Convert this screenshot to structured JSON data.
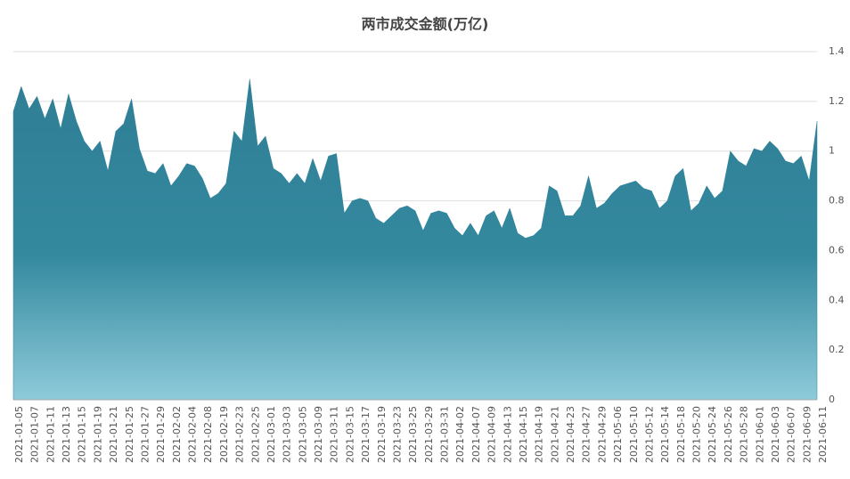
{
  "chart_data": {
    "type": "area",
    "title": "两市成交金额(万亿)",
    "categories": [
      "2021-01-05",
      null,
      "2021-01-07",
      null,
      "2021-01-11",
      null,
      "2021-01-13",
      null,
      "2021-01-15",
      null,
      "2021-01-19",
      null,
      "2021-01-21",
      null,
      "2021-01-25",
      null,
      "2021-01-27",
      null,
      "2021-01-29",
      null,
      "2021-02-02",
      null,
      "2021-02-04",
      null,
      "2021-02-08",
      null,
      "2021-02-19",
      null,
      "2021-02-23",
      null,
      "2021-02-25",
      null,
      "2021-03-01",
      null,
      "2021-03-03",
      null,
      "2021-03-05",
      null,
      "2021-03-09",
      null,
      "2021-03-11",
      null,
      "2021-03-15",
      null,
      "2021-03-17",
      null,
      "2021-03-19",
      null,
      "2021-03-23",
      null,
      "2021-03-25",
      null,
      "2021-03-29",
      null,
      "2021-03-31",
      null,
      "2021-04-02",
      null,
      "2021-04-07",
      null,
      "2021-04-09",
      null,
      "2021-04-13",
      null,
      "2021-04-15",
      null,
      "2021-04-19",
      null,
      "2021-04-21",
      null,
      "2021-04-23",
      null,
      "2021-04-27",
      null,
      "2021-04-29",
      null,
      "2021-05-06",
      null,
      "2021-05-10",
      null,
      "2021-05-12",
      null,
      "2021-05-14",
      null,
      "2021-05-18",
      null,
      "2021-05-20",
      null,
      "2021-05-24",
      null,
      "2021-05-26",
      null,
      "2021-05-28",
      null,
      "2021-06-01",
      null,
      "2021-06-03",
      null,
      "2021-06-07",
      null,
      "2021-06-09",
      null,
      "2021-06-11"
    ],
    "values": [
      1.16,
      1.26,
      1.17,
      1.22,
      1.13,
      1.21,
      1.09,
      1.23,
      1.12,
      1.04,
      1.0,
      1.04,
      0.92,
      1.08,
      1.11,
      1.21,
      1.01,
      0.92,
      0.91,
      0.95,
      0.86,
      0.9,
      0.95,
      0.94,
      0.89,
      0.81,
      0.83,
      0.87,
      1.08,
      1.04,
      1.29,
      1.02,
      1.06,
      0.93,
      0.91,
      0.87,
      0.91,
      0.87,
      0.97,
      0.88,
      0.98,
      0.99,
      0.75,
      0.8,
      0.81,
      0.8,
      0.73,
      0.71,
      0.74,
      0.77,
      0.78,
      0.76,
      0.68,
      0.75,
      0.76,
      0.75,
      0.69,
      0.66,
      0.71,
      0.66,
      0.74,
      0.76,
      0.69,
      0.77,
      0.67,
      0.65,
      0.66,
      0.69,
      0.86,
      0.84,
      0.74,
      0.74,
      0.78,
      0.9,
      0.77,
      0.79,
      0.83,
      0.86,
      0.87,
      0.88,
      0.85,
      0.84,
      0.77,
      0.8,
      0.9,
      0.93,
      0.76,
      0.79,
      0.86,
      0.81,
      0.84,
      1.0,
      0.96,
      0.94,
      1.01,
      1.0,
      1.04,
      1.01,
      0.96,
      0.95,
      0.98,
      0.88,
      1.12
    ],
    "color": "#31849b",
    "ylim": [
      0,
      1.4
    ],
    "yticks": [
      0,
      0.2,
      0.4,
      0.6,
      0.8,
      1,
      1.2,
      1.4
    ],
    "grid": true
  }
}
